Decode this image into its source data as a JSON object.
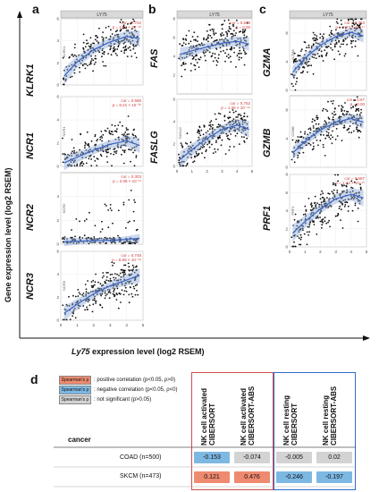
{
  "figure": {
    "panels": {
      "a": "a",
      "b": "b",
      "c": "c",
      "d": "d"
    },
    "y_axis_label": "Gene expression level (log2 RSEM)",
    "x_axis_label_gene": "Ly75",
    "x_axis_label_rest": " expression level (log2 RSEM)"
  },
  "chart_data": [
    {
      "type": "scatter",
      "panel": "a",
      "strip": "LY75",
      "gene": "KLRK1",
      "inner_ylabel": "KLRK1",
      "cor_text": "cor = 0.722",
      "p_text": "p = 2.82 × 10⁻⁴²",
      "xlim": [
        0,
        5
      ],
      "ylim": [
        0,
        6
      ],
      "xticks": [],
      "yticks": [
        0,
        2,
        4,
        6
      ],
      "trend": [
        [
          0.2,
          0.8
        ],
        [
          1,
          2.1
        ],
        [
          2,
          3.2
        ],
        [
          3,
          3.9
        ],
        [
          4,
          4.4
        ],
        [
          4.8,
          4.2
        ]
      ],
      "ci": 0.4,
      "n": 260
    },
    {
      "type": "scatter",
      "panel": "a",
      "strip": "",
      "gene": "NCR1",
      "inner_ylabel": "NCR1",
      "cor_text": "cor = 0.586",
      "p_text": "p = 8.21 × 10⁻³⁶",
      "xlim": [
        0,
        5
      ],
      "ylim": [
        0,
        6
      ],
      "xticks": [],
      "yticks": [
        0,
        2,
        4,
        6
      ],
      "trend": [
        [
          0.2,
          0.3
        ],
        [
          1,
          0.8
        ],
        [
          2,
          1.4
        ],
        [
          3,
          1.9
        ],
        [
          4,
          2.2
        ],
        [
          4.8,
          1.8
        ]
      ],
      "ci": 0.35,
      "n": 230
    },
    {
      "type": "scatter",
      "panel": "a",
      "strip": "",
      "gene": "NCR2",
      "inner_ylabel": "NCR2",
      "cor_text": "cor = 0.303",
      "p_text": "p = 2.06 × 10⁻¹¹",
      "xlim": [
        0,
        5
      ],
      "ylim": [
        0,
        6
      ],
      "xticks": [],
      "yticks": [
        0,
        2,
        4
      ],
      "trend": [
        [
          0.2,
          0.2
        ],
        [
          2,
          0.3
        ],
        [
          3.5,
          0.35
        ],
        [
          4.8,
          0.5
        ]
      ],
      "ci": 0.2,
      "n": 180
    },
    {
      "type": "scatter",
      "panel": "a",
      "strip": "",
      "gene": "NCR3",
      "inner_ylabel": "NCR3",
      "cor_text": "cor = 0.748",
      "p_text": "p = 8.55 × 10⁻⁴⁵",
      "xlim": [
        0,
        5
      ],
      "ylim": [
        0,
        6
      ],
      "xticks": [
        0,
        1,
        2,
        3,
        4,
        5
      ],
      "yticks": [
        0,
        2,
        4,
        6
      ],
      "trend": [
        [
          0.2,
          0.6
        ],
        [
          1,
          1.4
        ],
        [
          2,
          2.3
        ],
        [
          3,
          3.0
        ],
        [
          4,
          3.5
        ],
        [
          4.8,
          3.9
        ]
      ],
      "ci": 0.35,
      "n": 260
    },
    {
      "type": "scatter",
      "panel": "b",
      "strip": "LY75",
      "gene": "FAS",
      "inner_ylabel": "FAS",
      "cor_text": "cor = 0.529",
      "p_text": "p = 0.00",
      "xlim": [
        0,
        5
      ],
      "ylim": [
        0,
        8
      ],
      "xticks": [],
      "yticks": [
        2,
        4,
        6,
        8
      ],
      "trend": [
        [
          0.2,
          4.2
        ],
        [
          1,
          4.6
        ],
        [
          2,
          5.0
        ],
        [
          3,
          5.4
        ],
        [
          4,
          5.6
        ],
        [
          4.8,
          5.3
        ]
      ],
      "ci": 0.4,
      "n": 260
    },
    {
      "type": "scatter",
      "panel": "b",
      "strip": "",
      "gene": "FASLG",
      "inner_ylabel": "FASLG",
      "cor_text": "cor = 0.752",
      "p_text": "p = 1.35 × 10⁻⁴⁹",
      "xlim": [
        0,
        5
      ],
      "ylim": [
        0,
        6
      ],
      "xticks": [
        0,
        1,
        2,
        3,
        4,
        5
      ],
      "yticks": [
        0,
        2,
        4,
        6
      ],
      "trend": [
        [
          0.2,
          0.6
        ],
        [
          1,
          1.5
        ],
        [
          2,
          2.5
        ],
        [
          3,
          3.3
        ],
        [
          4,
          3.7
        ],
        [
          4.8,
          3.3
        ]
      ],
      "ci": 0.4,
      "n": 260
    },
    {
      "type": "scatter",
      "panel": "c",
      "strip": "LY75",
      "gene": "GZMA",
      "inner_ylabel": "GZMA",
      "cor_text": "cor = 0.753",
      "p_text": "p = 2.73 × 10⁻⁴⁷",
      "xlim": [
        0,
        5
      ],
      "ylim": [
        0,
        10
      ],
      "xticks": [],
      "yticks": [
        0,
        4,
        8
      ],
      "trend": [
        [
          0.2,
          2.5
        ],
        [
          1,
          4.5
        ],
        [
          2,
          6.3
        ],
        [
          3,
          7.5
        ],
        [
          4,
          8.1
        ],
        [
          4.8,
          7.6
        ]
      ],
      "ci": 0.5,
      "n": 260
    },
    {
      "type": "scatter",
      "panel": "c",
      "strip": "",
      "gene": "GZMB",
      "inner_ylabel": "GZMB",
      "cor_text": "cor = 0.67",
      "p_text": "p = 0.00",
      "xlim": [
        0,
        5
      ],
      "ylim": [
        0,
        10
      ],
      "xticks": [],
      "yticks": [
        0,
        4,
        8
      ],
      "trend": [
        [
          0.2,
          2.0
        ],
        [
          1,
          3.6
        ],
        [
          2,
          5.2
        ],
        [
          3,
          6.3
        ],
        [
          4,
          6.8
        ],
        [
          4.8,
          6.3
        ]
      ],
      "ci": 0.5,
      "n": 260
    },
    {
      "type": "scatter",
      "panel": "c",
      "strip": "",
      "gene": "PRF1",
      "inner_ylabel": "PRF1",
      "cor_text": "cor = 0.687",
      "p_text": "p = 1.24 × 10⁻⁴⁰",
      "xlim": [
        0,
        5
      ],
      "ylim": [
        0,
        8
      ],
      "xticks": [
        0,
        1,
        2,
        3,
        4,
        5
      ],
      "yticks": [
        0,
        2,
        4,
        6,
        8
      ],
      "trend": [
        [
          0.2,
          1.5
        ],
        [
          1,
          2.8
        ],
        [
          2,
          4.2
        ],
        [
          3,
          5.3
        ],
        [
          4,
          5.8
        ],
        [
          4.8,
          5.4
        ]
      ],
      "ci": 0.5,
      "n": 260
    },
    {
      "type": "table",
      "panel": "d",
      "legend": [
        {
          "chip": "Spearman's ρ",
          "text": ": positive correlation (p<0.05, ρ>0)",
          "color": "#ee8a6f"
        },
        {
          "chip": "Spearman's ρ",
          "text": ": negative correlation (p<0.05, ρ<0)",
          "color": "#7db8e3"
        },
        {
          "chip": "Spearman's ρ",
          "text": ": not significant (p>0.05)",
          "color": "#d3d3d3"
        }
      ],
      "row_header": "cancer",
      "columns": [
        {
          "l1": "NK cell activated",
          "l2": "CIBERSORT"
        },
        {
          "l1": "NK cell activated",
          "l2": "CIBERSORT-ABS"
        },
        {
          "l1": "NK cell resting",
          "l2": "CIBERSORT"
        },
        {
          "l1": "NK cell resting",
          "l2": "CIBERSORT-ABS"
        }
      ],
      "rows": [
        {
          "label": "COAD (n=500)",
          "cells": [
            {
              "value": "-0.153",
              "color": "#7db8e3"
            },
            {
              "value": "-0.074",
              "color": "#d3d3d3"
            },
            {
              "value": "-0.005",
              "color": "#d3d3d3"
            },
            {
              "value": "0.02",
              "color": "#d3d3d3"
            }
          ]
        },
        {
          "label": "SKCM (n=473)",
          "cells": [
            {
              "value": "0.121",
              "color": "#ee8a6f"
            },
            {
              "value": "0.476",
              "color": "#ee8a6f"
            },
            {
              "value": "-0.246",
              "color": "#7db8e3"
            },
            {
              "value": "-0.197",
              "color": "#7db8e3"
            }
          ]
        }
      ],
      "group_colors": [
        "#d24a4a",
        "#2e6bd1"
      ]
    }
  ]
}
